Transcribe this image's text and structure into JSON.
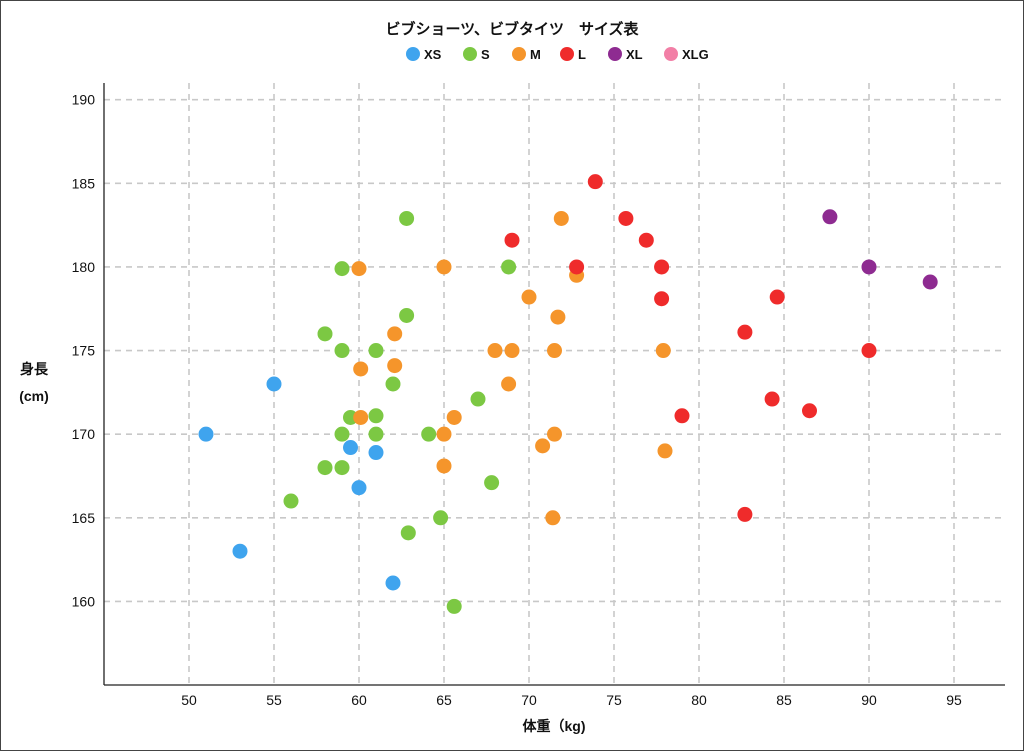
{
  "chart_data": {
    "type": "scatter",
    "title": "ビブショーツ、ビブタイツ　サイズ表",
    "xlabel": "体重（kg)",
    "ylabel": [
      "身長",
      "(cm)"
    ],
    "xlim": [
      45,
      98
    ],
    "ylim": [
      155,
      191
    ],
    "xticks": [
      50,
      55,
      60,
      65,
      70,
      75,
      80,
      85,
      90,
      95
    ],
    "yticks": [
      160,
      165,
      170,
      175,
      180,
      185,
      190
    ],
    "grid": true,
    "legend_position": "top-center",
    "series": [
      {
        "name": "XS",
        "color": "#3fa4ee",
        "points": [
          [
            51,
            170
          ],
          [
            55,
            173
          ],
          [
            53,
            163
          ],
          [
            59.5,
            169.2
          ],
          [
            61,
            168.9
          ],
          [
            60,
            166.8
          ],
          [
            62,
            161.1
          ]
        ]
      },
      {
        "name": "S",
        "color": "#7cc843",
        "points": [
          [
            62.8,
            182.9
          ],
          [
            59,
            179.9
          ],
          [
            68.8,
            180
          ],
          [
            62.8,
            177.1
          ],
          [
            58,
            176
          ],
          [
            59,
            175
          ],
          [
            61,
            175
          ],
          [
            62,
            173
          ],
          [
            67,
            172.1
          ],
          [
            59.5,
            171
          ],
          [
            61,
            171.1
          ],
          [
            59,
            170
          ],
          [
            61,
            170
          ],
          [
            64.1,
            170
          ],
          [
            58,
            168
          ],
          [
            59,
            168
          ],
          [
            67.8,
            167.1
          ],
          [
            56,
            166
          ],
          [
            64.8,
            165
          ],
          [
            62.9,
            164.1
          ],
          [
            65.6,
            159.7
          ]
        ]
      },
      {
        "name": "M",
        "color": "#f5952b",
        "points": [
          [
            71.9,
            182.9
          ],
          [
            60,
            179.9
          ],
          [
            65,
            180
          ],
          [
            72.8,
            179.5
          ],
          [
            70,
            178.2
          ],
          [
            71.7,
            177
          ],
          [
            62.1,
            176
          ],
          [
            68,
            175
          ],
          [
            69,
            175
          ],
          [
            71.5,
            175
          ],
          [
            77.9,
            175
          ],
          [
            60.1,
            173.9
          ],
          [
            62.1,
            174.1
          ],
          [
            68.8,
            173
          ],
          [
            60.1,
            171
          ],
          [
            65.6,
            171
          ],
          [
            65,
            170
          ],
          [
            71.5,
            170
          ],
          [
            70.8,
            169.3
          ],
          [
            78,
            169
          ],
          [
            65,
            168.1
          ],
          [
            71.4,
            165
          ]
        ]
      },
      {
        "name": "L",
        "color": "#ef2b2b",
        "points": [
          [
            73.9,
            185.1
          ],
          [
            75.7,
            182.9
          ],
          [
            76.9,
            181.6
          ],
          [
            69,
            181.6
          ],
          [
            72.8,
            180
          ],
          [
            77.8,
            180
          ],
          [
            77.8,
            178.1
          ],
          [
            84.6,
            178.2
          ],
          [
            82.7,
            176.1
          ],
          [
            90,
            175
          ],
          [
            84.3,
            172.1
          ],
          [
            86.5,
            171.4
          ],
          [
            79,
            171.1
          ],
          [
            82.7,
            165.2
          ]
        ]
      },
      {
        "name": "XL",
        "color": "#8e2b91",
        "points": [
          [
            87.7,
            183
          ],
          [
            90,
            180
          ],
          [
            93.6,
            179.1
          ]
        ]
      },
      {
        "name": "XLG",
        "color": "#f27fa6",
        "points": []
      }
    ]
  }
}
